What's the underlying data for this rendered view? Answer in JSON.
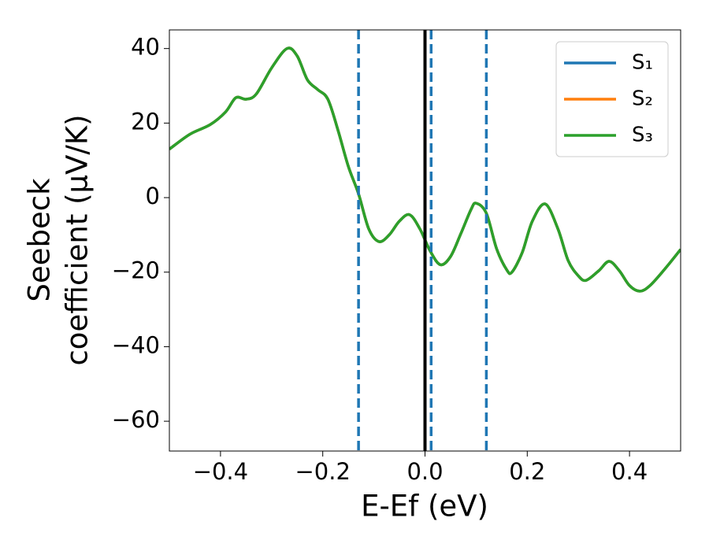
{
  "chart_data": {
    "type": "line",
    "xlabel": "E-Ef (eV)",
    "ylabel": [
      "Seebeck",
      "coefficient  (μV/K)"
    ],
    "xlim": [
      -0.5,
      0.5
    ],
    "ylim": [
      -68,
      45
    ],
    "xticks": [
      {
        "value": -0.4,
        "label": "−0.4"
      },
      {
        "value": -0.2,
        "label": "−0.2"
      },
      {
        "value": 0,
        "label": "0.0"
      },
      0.2,
      0.4
    ],
    "yticks": [
      {
        "value": -60,
        "label": "−60"
      },
      {
        "value": -40,
        "label": "−40"
      },
      {
        "value": -20,
        "label": "−20"
      },
      0,
      20,
      40
    ],
    "legend": "upper right",
    "vlines": [
      {
        "x": 0,
        "color": "#000000",
        "style": "solid"
      },
      {
        "x": -0.13,
        "color": "#1f77b4",
        "style": "dashed"
      },
      {
        "x": 0.012,
        "color": "#1f77b4",
        "style": "dashed"
      },
      {
        "x": 0.12,
        "color": "#1f77b4",
        "style": "dashed"
      }
    ],
    "x": [
      -0.5,
      -0.46,
      -0.42,
      -0.39,
      -0.37,
      -0.35,
      -0.33,
      -0.3,
      -0.27,
      -0.25,
      -0.23,
      -0.21,
      -0.19,
      -0.17,
      -0.15,
      -0.13,
      -0.11,
      -0.09,
      -0.07,
      -0.05,
      -0.03,
      -0.01,
      0.01,
      0.03,
      0.05,
      0.07,
      0.09,
      0.1,
      0.12,
      0.14,
      0.16,
      0.17,
      0.19,
      0.21,
      0.235,
      0.26,
      0.28,
      0.3,
      0.315,
      0.34,
      0.36,
      0.38,
      0.4,
      0.42,
      0.44,
      0.47,
      0.5
    ],
    "series": [
      {
        "name": "S₁",
        "color": "#1f77b4",
        "values": [
          13,
          17,
          19.6,
          23,
          26.8,
          26.4,
          27.8,
          34.8,
          40,
          38,
          31.6,
          29,
          26.4,
          18,
          8.4,
          1,
          -8.4,
          -11.8,
          -10,
          -6.3,
          -4.6,
          -8.4,
          -14.3,
          -18,
          -15.8,
          -9.7,
          -3.2,
          -1.5,
          -4.2,
          -13.7,
          -19.4,
          -20,
          -14.8,
          -6.3,
          -1.7,
          -8.4,
          -16.9,
          -21,
          -22.2,
          -19.6,
          -17.1,
          -19.6,
          -23.6,
          -25.1,
          -23.6,
          -19,
          -13.9
        ]
      },
      {
        "name": "S₂",
        "color": "#ff7f0e",
        "values": [
          13,
          17,
          19.6,
          23,
          26.8,
          26.4,
          27.8,
          34.8,
          40,
          38,
          31.6,
          29,
          26.4,
          18,
          8.4,
          1,
          -8.4,
          -11.8,
          -10,
          -6.3,
          -4.6,
          -8.4,
          -14.3,
          -18,
          -15.8,
          -9.7,
          -3.2,
          -1.5,
          -4.2,
          -13.7,
          -19.4,
          -20,
          -14.8,
          -6.3,
          -1.7,
          -8.4,
          -16.9,
          -21,
          -22.2,
          -19.6,
          -17.1,
          -19.6,
          -23.6,
          -25.1,
          -23.6,
          -19,
          -13.9
        ]
      },
      {
        "name": "S₃",
        "color": "#2ca02c",
        "values": [
          13,
          17,
          19.6,
          23,
          26.8,
          26.4,
          27.8,
          34.8,
          40,
          38,
          31.6,
          29,
          26.4,
          18,
          8.4,
          1,
          -8.4,
          -11.8,
          -10,
          -6.3,
          -4.6,
          -8.4,
          -14.3,
          -18,
          -15.8,
          -9.7,
          -3.2,
          -1.5,
          -4.2,
          -13.7,
          -19.4,
          -20,
          -14.8,
          -6.3,
          -1.7,
          -8.4,
          -16.9,
          -21,
          -22.2,
          -19.6,
          -17.1,
          -19.6,
          -23.6,
          -25.1,
          -23.6,
          -19,
          -13.9
        ]
      }
    ]
  }
}
